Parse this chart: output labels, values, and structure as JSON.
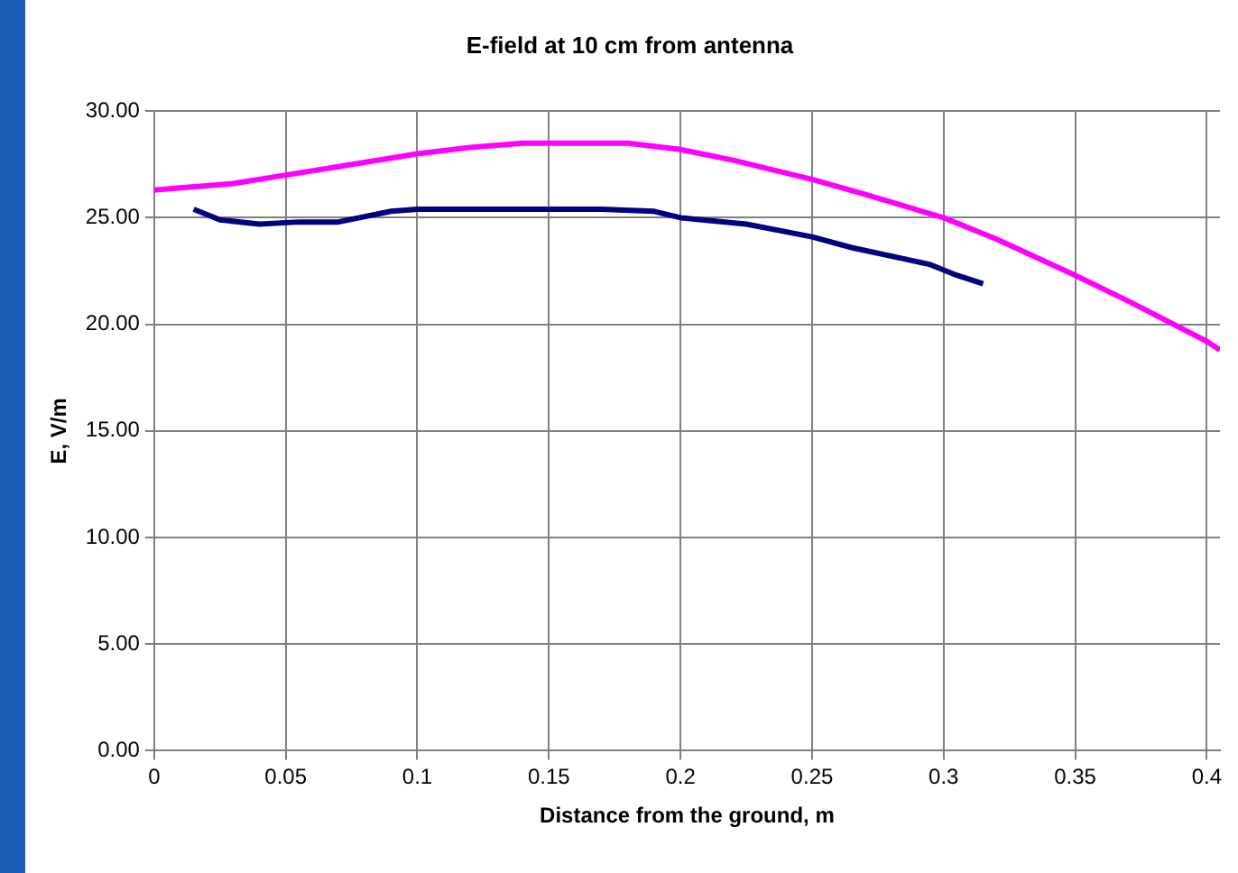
{
  "chart_data": {
    "type": "line",
    "title": "E-field at 10 cm from antenna",
    "xlabel": "Distance from the ground, m",
    "ylabel": "E, V/m",
    "series": [
      {
        "color": "#ff00ff",
        "x": [
          0,
          0.01,
          0.03,
          0.05,
          0.07,
          0.1,
          0.12,
          0.14,
          0.15,
          0.18,
          0.2,
          0.22,
          0.25,
          0.27,
          0.3,
          0.32,
          0.35,
          0.37,
          0.4,
          0.405
        ],
        "values": [
          26.3,
          26.4,
          26.6,
          27.0,
          27.4,
          28.0,
          28.3,
          28.5,
          28.5,
          28.5,
          28.2,
          27.7,
          26.8,
          26.1,
          25.0,
          24.0,
          22.3,
          21.1,
          19.2,
          18.8
        ]
      },
      {
        "color": "#000080",
        "x": [
          0.015,
          0.025,
          0.04,
          0.055,
          0.07,
          0.09,
          0.1,
          0.13,
          0.17,
          0.19,
          0.2,
          0.225,
          0.25,
          0.265,
          0.295,
          0.305,
          0.315
        ],
        "values": [
          25.4,
          24.9,
          24.7,
          24.8,
          24.8,
          25.3,
          25.4,
          25.4,
          25.4,
          25.3,
          25.0,
          24.7,
          24.1,
          23.6,
          22.8,
          22.3,
          21.9
        ]
      }
    ],
    "xlim": [
      0,
      0.405
    ],
    "xticks": [
      0,
      0.05,
      0.1,
      0.15,
      0.2,
      0.25,
      0.3,
      0.35,
      0.4
    ],
    "ylim": [
      0,
      30
    ],
    "yticks": [
      {
        "value": 0,
        "label": "0.00"
      },
      {
        "value": 5,
        "label": "5.00"
      },
      {
        "value": 10,
        "label": "10.00"
      },
      {
        "value": 15,
        "label": "15.00"
      },
      {
        "value": 20,
        "label": "20.00"
      },
      {
        "value": 25,
        "label": "25.00"
      },
      {
        "value": 30,
        "label": "30.00"
      }
    ],
    "grid": true,
    "marker": "none",
    "line_style": "solid"
  }
}
